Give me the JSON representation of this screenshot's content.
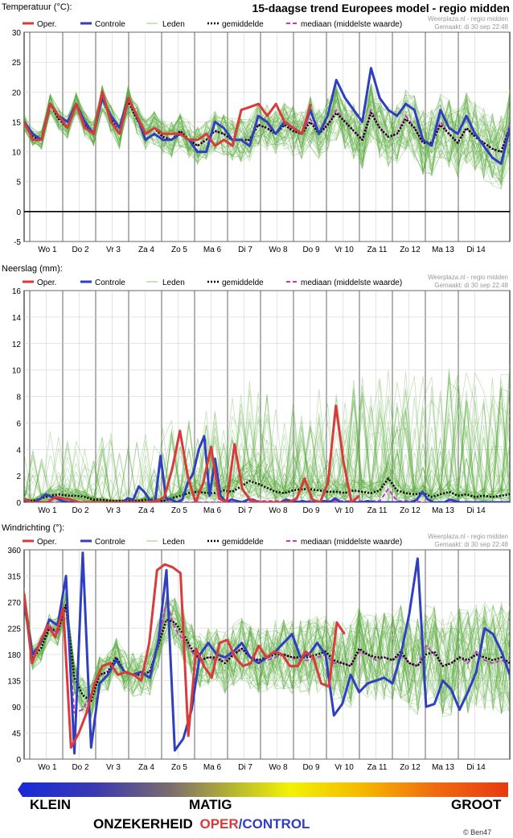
{
  "header": {
    "title": "15-daagse trend Europees model - regio midden",
    "source": "Weerplaza.nl - regio midden",
    "made": "Gemaakt: di 30 sep 22:48"
  },
  "legend": {
    "oper": "Oper.",
    "controle": "Controle",
    "leden": "Leden",
    "gemiddelde": "gemiddelde",
    "mediaan": "mediaan (middelste waarde)"
  },
  "colors": {
    "oper": "#d93a3a",
    "controle": "#2f3fbf",
    "leden": "#55a83a",
    "gemiddelde": "#000000",
    "mediaan": "#cc33cc"
  },
  "days": [
    "Wo 1",
    "Do 2",
    "Vr 3",
    "Za 4",
    "Zo 5",
    "Ma 6",
    "Di 7",
    "Wo 8",
    "Do 9",
    "Vr 10",
    "Za 11",
    "Zo 12",
    "Ma 13",
    "Di 14"
  ],
  "chart_data": [
    {
      "type": "line",
      "title": "Temperatuur (°C):",
      "ylim": [
        -5,
        30
      ],
      "yticks": [
        -5,
        0,
        5,
        10,
        15,
        20,
        25,
        30
      ],
      "x_step_hours": 6,
      "series": [
        {
          "name": "Oper.",
          "values": [
            15,
            12,
            12,
            18,
            16,
            14,
            18,
            14,
            13,
            20,
            15,
            13,
            19,
            16,
            13,
            14,
            13,
            13,
            13,
            12,
            12,
            13,
            11,
            12,
            11,
            17,
            17.5,
            18,
            16,
            18,
            15,
            14,
            13,
            18
          ]
        },
        {
          "name": "Controle",
          "values": [
            15,
            13,
            12,
            18,
            16,
            15,
            18,
            15,
            13,
            19,
            16,
            14,
            19,
            16,
            12,
            13,
            12,
            12,
            13,
            12,
            10,
            10,
            15,
            14,
            12,
            12,
            11,
            16,
            15,
            13,
            15,
            14,
            13,
            17,
            13,
            16,
            22,
            19,
            17,
            15,
            24,
            19,
            17,
            16,
            18,
            17,
            12,
            11,
            17,
            14,
            13,
            16,
            13,
            11,
            9,
            8,
            14
          ]
        },
        {
          "name": "gemiddelde",
          "values": [
            15,
            12.5,
            12,
            18,
            15.5,
            14,
            18,
            14.5,
            13,
            19,
            15.5,
            13,
            18.5,
            15.5,
            13,
            14,
            12.5,
            12,
            13.5,
            12,
            11,
            12,
            13.5,
            13,
            12,
            12,
            12,
            14.5,
            14,
            13,
            14.5,
            13.5,
            13,
            15,
            13,
            14.5,
            16.5,
            15,
            13.5,
            12,
            16.5,
            14,
            12.5,
            13,
            15.5,
            14,
            11.5,
            11.5,
            14.5,
            13,
            11.5,
            14,
            12.5,
            11.5,
            10.5,
            10,
            14
          ]
        },
        {
          "name": "mediaan (middelste waarde)",
          "values": [
            15,
            12.5,
            12,
            18,
            15.5,
            14,
            18,
            14.5,
            13,
            19,
            15.5,
            13,
            18.5,
            15.5,
            13,
            14,
            12.5,
            12,
            13.5,
            12,
            11,
            12,
            13.5,
            13,
            12,
            12,
            12,
            14.5,
            14,
            13,
            14.5,
            13.5,
            13,
            15.5,
            13,
            14.5,
            17,
            15,
            13.5,
            12,
            17,
            14,
            12.5,
            13,
            16,
            14,
            11.5,
            11.5,
            15,
            13,
            11.5,
            14,
            12.5,
            11.5,
            10.5,
            10,
            14.5
          ]
        }
      ]
    },
    {
      "type": "line",
      "title": "Neerslag (mm):",
      "ylim": [
        0,
        16
      ],
      "yticks": [
        0,
        2,
        4,
        6,
        8,
        10,
        12,
        14,
        16
      ],
      "x_step_hours": 6,
      "series": [
        {
          "name": "Oper.",
          "values": [
            0.2,
            0,
            0,
            0,
            0.4,
            0.3,
            0.2,
            0,
            0,
            0,
            0,
            0,
            0,
            0,
            0,
            0,
            0,
            0.1,
            0.4,
            2.5,
            5.4,
            2,
            0,
            1.5,
            4.2,
            0.3,
            0,
            4.4,
            1,
            0.2,
            0,
            0,
            0,
            0,
            0,
            0.3,
            1.8,
            0.2,
            0,
            1.5,
            7.3,
            3,
            0,
            0.5
          ]
        },
        {
          "name": "Controle",
          "values": [
            0.1,
            0,
            0,
            0.3,
            0.6,
            0.4,
            0.3,
            0.1,
            0,
            0,
            0,
            0,
            0,
            0,
            0,
            0,
            0,
            0,
            0,
            0.3,
            0.2,
            1.2,
            0.8,
            0.2,
            0,
            3.5,
            0.3,
            0.2,
            0,
            0.2,
            1.5,
            2.2,
            4,
            5,
            0.5,
            3.3,
            0.5,
            0,
            0.2,
            0.1,
            0,
            0.2,
            0.2,
            0,
            0,
            0,
            0,
            0,
            0.2,
            0.1,
            0,
            0.1,
            0,
            0,
            0,
            0.1,
            0,
            0.3,
            0,
            0,
            0,
            0,
            0,
            0.1,
            0,
            0,
            0,
            0,
            0,
            0,
            0,
            0,
            0.2,
            0.8,
            0.2,
            0,
            0,
            0,
            0.2,
            0.1,
            0,
            0,
            0,
            0,
            0,
            0,
            0,
            0,
            0,
            0
          ]
        },
        {
          "name": "gemiddelde",
          "values": [
            0.2,
            0.1,
            0.3,
            0.5,
            0.6,
            0.5,
            0.5,
            0.4,
            0.2,
            0.2,
            0.1,
            0.1,
            0.1,
            0.1,
            0.2,
            0.2,
            0.1,
            0.3,
            0.5,
            0.7,
            0.8,
            0.7,
            0.7,
            0.9,
            0.8,
            1.2,
            1.6,
            1.4,
            1.1,
            0.8,
            0.7,
            0.9,
            1,
            1,
            0.9,
            0.8,
            0.8,
            0.7,
            0.9,
            0.8,
            0.7,
            0.9,
            1.8,
            0.9,
            0.7,
            0.6,
            0.7,
            0.4,
            0.6,
            0.8,
            0.5,
            0.6,
            0.4,
            0.5,
            0.4,
            0.5,
            0.6
          ]
        },
        {
          "name": "mediaan (middelste waarde)",
          "values": [
            0,
            0,
            0,
            0,
            0,
            0,
            0,
            0,
            0,
            0,
            0,
            0,
            0,
            0,
            0,
            0,
            0,
            0,
            0,
            0,
            0,
            0,
            0,
            0,
            0,
            0.1,
            0.1,
            0.1,
            0.1,
            0.1,
            0.1,
            0.1,
            0.1,
            0.1,
            0.1,
            0.1,
            0.1,
            0.1,
            0.1,
            0.1,
            0.1,
            0.1,
            1,
            0.1,
            0.1,
            0.1,
            0,
            0,
            0,
            0,
            0,
            0,
            0,
            0,
            0,
            0,
            0
          ]
        }
      ]
    },
    {
      "type": "line",
      "title": "Windrichting (°):",
      "ylim": [
        0,
        360
      ],
      "yticks": [
        0,
        45,
        90,
        135,
        180,
        225,
        270,
        315,
        360
      ],
      "x_step_hours": 6,
      "series": [
        {
          "name": "Oper.",
          "values": [
            285,
            165,
            200,
            230,
            210,
            260,
            20,
            45,
            80,
            130,
            160,
            165,
            145,
            150,
            145,
            135,
            200,
            325,
            335,
            330,
            320,
            40,
            190,
            160,
            140,
            200,
            205,
            175,
            160,
            165,
            195,
            175,
            185,
            180,
            160,
            160,
            185,
            175,
            130,
            125,
            235,
            215
          ]
        },
        {
          "name": "Controle",
          "values": [
            270,
            180,
            200,
            240,
            230,
            315,
            10,
            355,
            20,
            130,
            145,
            170,
            150,
            145,
            150,
            140,
            200,
            325,
            15,
            35,
            85,
            180,
            200,
            180,
            175,
            185,
            200,
            175,
            165,
            175,
            185,
            200,
            215,
            175,
            180,
            200,
            180,
            75,
            95,
            145,
            115,
            130,
            135,
            140,
            130,
            180,
            250,
            345,
            90,
            95,
            135,
            120,
            85,
            115,
            150,
            225,
            215,
            185,
            145
          ]
        },
        {
          "name": "gemiddelde",
          "values": [
            275,
            175,
            190,
            225,
            220,
            265,
            140,
            110,
            100,
            145,
            150,
            175,
            150,
            145,
            145,
            150,
            195,
            240,
            235,
            215,
            190,
            170,
            175,
            175,
            165,
            180,
            190,
            175,
            170,
            175,
            180,
            180,
            175,
            175,
            175,
            180,
            185,
            170,
            165,
            160,
            190,
            180,
            175,
            175,
            170,
            185,
            165,
            160,
            180,
            185,
            160,
            165,
            175,
            170,
            180,
            175,
            170,
            175,
            165
          ]
        },
        {
          "name": "mediaan (middelste waarde)",
          "values": [
            275,
            180,
            200,
            230,
            215,
            265,
            80,
            85,
            110,
            145,
            150,
            175,
            150,
            145,
            145,
            150,
            195,
            270,
            225,
            205,
            185,
            170,
            175,
            170,
            170,
            180,
            190,
            175,
            170,
            170,
            175,
            180,
            175,
            170,
            170,
            175,
            180,
            165,
            165,
            160,
            185,
            180,
            170,
            175,
            170,
            180,
            165,
            160,
            195,
            180,
            160,
            165,
            175,
            165,
            185,
            170,
            165,
            170,
            165
          ]
        }
      ]
    }
  ],
  "bottom": {
    "klein": "KLEIN",
    "matig": "MATIG",
    "groot": "GROOT",
    "onzekerheid": "ONZEKERHEID",
    "oper": "OPER",
    "slash": "/",
    "control": "CONTROL",
    "copyright": "© Ben47"
  }
}
